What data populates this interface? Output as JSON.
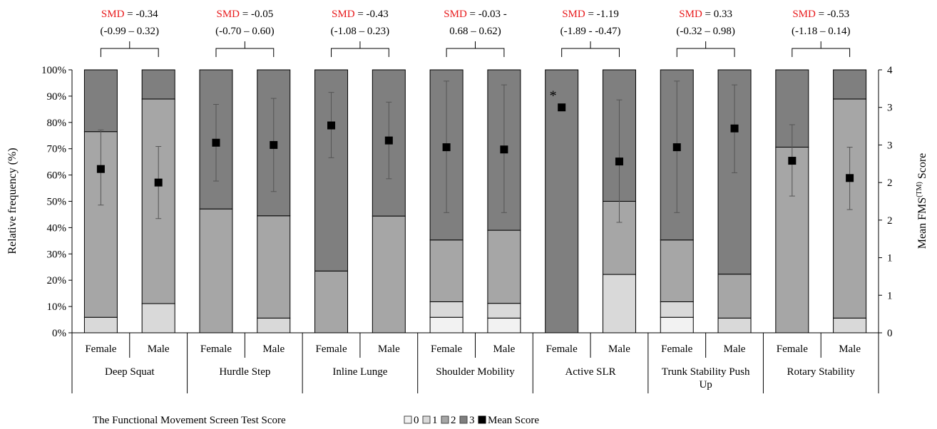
{
  "chart_data": {
    "type": "bar",
    "stacked": true,
    "ylabel": "Relative frequency (%)",
    "y2label_main": "Mean FMS",
    "y2label_sup": "(TM)",
    "y2label_tail": " Score",
    "ylim": [
      0,
      100
    ],
    "yticks": [
      "0%",
      "10%",
      "20%",
      "30%",
      "40%",
      "50%",
      "60%",
      "70%",
      "80%",
      "90%",
      "100%"
    ],
    "y2ticks": [
      "0",
      "1",
      "1",
      "2",
      "2",
      "3",
      "3",
      "4"
    ],
    "y2lim": [
      0,
      3.5
    ],
    "grid": false,
    "legend_title": "The Functional Movement Screen Test Score",
    "legend": [
      {
        "key": "0",
        "label": "0",
        "color": "#f2f2f2"
      },
      {
        "key": "1",
        "label": "1",
        "color": "#d9d9d9"
      },
      {
        "key": "2",
        "label": "2",
        "color": "#a6a6a6"
      },
      {
        "key": "3",
        "label": "3",
        "color": "#7f7f7f"
      },
      {
        "key": "mean",
        "label": "Mean Score",
        "color": "#000000"
      }
    ],
    "groups": [
      {
        "name": "Deep Squat",
        "smd_label": "SMD",
        "smd_value": " = -0.34",
        "ci": "(-0.99 – 0.32)",
        "bars": [
          {
            "sex": "Female",
            "s0": 0,
            "s1": 5.9,
            "s2": 70.6,
            "s3": 23.5,
            "mean": 2.18,
            "mean_lo": 1.7,
            "mean_hi": 2.7
          },
          {
            "sex": "Male",
            "s0": 0,
            "s1": 11.1,
            "s2": 77.8,
            "s3": 11.1,
            "mean": 2.0,
            "mean_lo": 1.52,
            "mean_hi": 2.48
          }
        ]
      },
      {
        "name": "Hurdle Step",
        "smd_label": "SMD",
        "smd_value": " =  -0.05",
        "ci": "(-0.70 – 0.60)",
        "bars": [
          {
            "sex": "Female",
            "s0": 0,
            "s1": 0,
            "s2": 47.1,
            "s3": 52.9,
            "mean": 2.53,
            "mean_lo": 2.02,
            "mean_hi": 3.04
          },
          {
            "sex": "Male",
            "s0": 0,
            "s1": 5.6,
            "s2": 38.9,
            "s3": 55.5,
            "mean": 2.5,
            "mean_lo": 1.88,
            "mean_hi": 3.12
          }
        ]
      },
      {
        "name": "Inline Lunge",
        "smd_label": "SMD",
        "smd_value": " = -0.43",
        "ci": "(-1.08 – 0.23)",
        "bars": [
          {
            "sex": "Female",
            "s0": 0,
            "s1": 0,
            "s2": 23.5,
            "s3": 76.5,
            "mean": 2.76,
            "mean_lo": 2.33,
            "mean_hi": 3.2
          },
          {
            "sex": "Male",
            "s0": 0,
            "s1": 0,
            "s2": 44.4,
            "s3": 55.6,
            "mean": 2.56,
            "mean_lo": 2.05,
            "mean_hi": 3.07
          }
        ]
      },
      {
        "name": "Shoulder Mobility",
        "smd_label": "SMD",
        "smd_value": " = -0.03 -",
        "ci": "0.68 – 0.62)",
        "bars": [
          {
            "sex": "Female",
            "s0": 5.9,
            "s1": 5.9,
            "s2": 23.5,
            "s3": 64.7,
            "mean": 2.47,
            "mean_lo": 1.6,
            "mean_hi": 3.35
          },
          {
            "sex": "Male",
            "s0": 5.6,
            "s1": 5.6,
            "s2": 27.8,
            "s3": 61.0,
            "mean": 2.44,
            "mean_lo": 1.6,
            "mean_hi": 3.3
          }
        ]
      },
      {
        "name": "Active SLR",
        "smd_label": "SMD",
        "smd_value": " = -1.19",
        "ci": "(-1.89 - -0.47)",
        "bars": [
          {
            "sex": "Female",
            "s0": 0,
            "s1": 0,
            "s2": 0,
            "s3": 100,
            "mean": 3.0,
            "mean_lo": null,
            "mean_hi": null,
            "significant": true
          },
          {
            "sex": "Male",
            "s0": 0,
            "s1": 22.2,
            "s2": 27.8,
            "s3": 50.0,
            "mean": 2.28,
            "mean_lo": 1.47,
            "mean_hi": 3.1
          }
        ]
      },
      {
        "name": "Trunk Stability Push Up",
        "smd_label": "SMD",
        "smd_value": " = 0.33",
        "ci": "(-0.32 – 0.98)",
        "bars": [
          {
            "sex": "Female",
            "s0": 5.9,
            "s1": 5.9,
            "s2": 23.5,
            "s3": 64.7,
            "mean": 2.47,
            "mean_lo": 1.6,
            "mean_hi": 3.35
          },
          {
            "sex": "Male",
            "s0": 0,
            "s1": 5.6,
            "s2": 16.7,
            "s3": 77.7,
            "mean": 2.72,
            "mean_lo": 2.13,
            "mean_hi": 3.3
          }
        ]
      },
      {
        "name": "Rotary Stability",
        "smd_label": "SMD",
        "smd_value": " = -0.53",
        "ci": "(-1.18 – 0.14)",
        "bars": [
          {
            "sex": "Female",
            "s0": 0,
            "s1": 0,
            "s2": 70.6,
            "s3": 29.4,
            "mean": 2.29,
            "mean_lo": 1.82,
            "mean_hi": 2.77
          },
          {
            "sex": "Male",
            "s0": 0,
            "s1": 5.6,
            "s2": 83.3,
            "s3": 11.1,
            "mean": 2.06,
            "mean_lo": 1.64,
            "mean_hi": 2.47
          }
        ]
      }
    ]
  }
}
